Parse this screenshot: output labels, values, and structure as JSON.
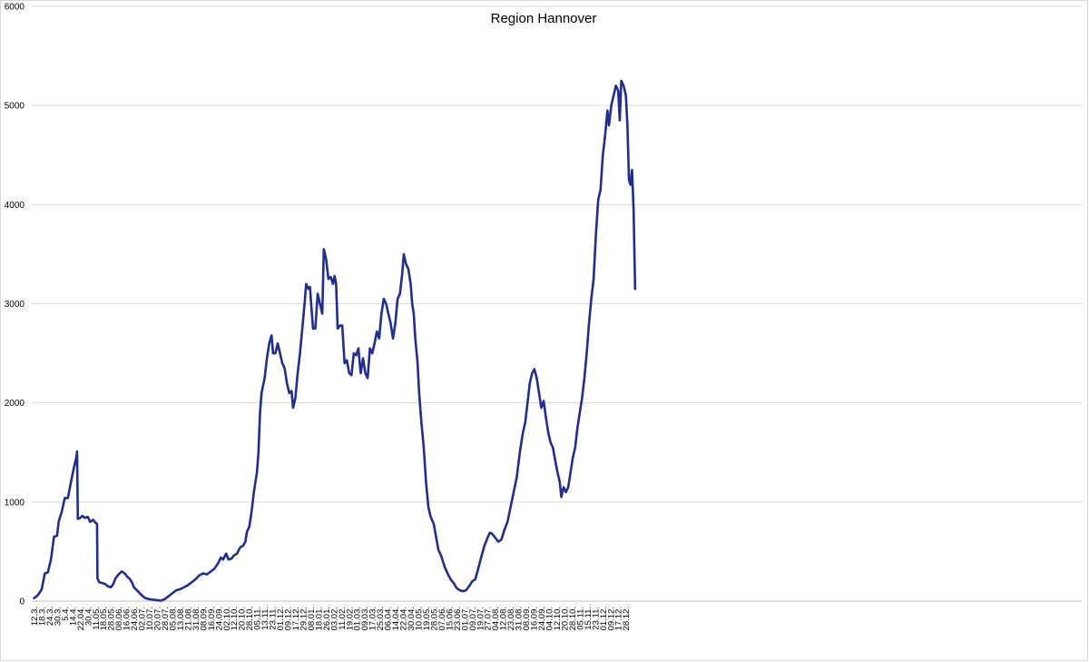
{
  "chart_data": {
    "type": "line",
    "title": "Region Hannover",
    "xlabel": "",
    "ylabel": "",
    "ylim": [
      0,
      6000
    ],
    "yticks": [
      0,
      1000,
      2000,
      3000,
      4000,
      5000,
      6000
    ],
    "grid": true,
    "legend": "none",
    "line_color": "#1f2d96",
    "x_tick_labels": [
      "12.3.",
      "18.3.",
      "24.3.",
      "30.3.",
      "5.4.",
      "14.4.",
      "22.04.",
      "30.4.",
      "11.05.",
      "18.05.",
      "28.05.",
      "08.06.",
      "16.06.",
      "24.06.",
      "02.07.",
      "10.07.",
      "20.07.",
      "28.07.",
      "05.08.",
      "13.08.",
      "21.08.",
      "31.08.",
      "08.09.",
      "16.09.",
      "24.09.",
      "02.10.",
      "12.10.",
      "20.10.",
      "28.10.",
      "05.11.",
      "13.11.",
      "23.11.",
      "01.12.",
      "09.12.",
      "17.12.",
      "29.12.",
      "08.01.",
      "18.01.",
      "26.01.",
      "03.02.",
      "11.02.",
      "19.02.",
      "01.03.",
      "09.03.",
      "17.03.",
      "25.03.",
      "06.04.",
      "14.04.",
      "22.04.",
      "30.04.",
      "10.05.",
      "19.05.",
      "28.05.",
      "07.06.",
      "15.06.",
      "23.06.",
      "01.07.",
      "09.07.",
      "19.07.",
      "27.07.",
      "04.08.",
      "12.08.",
      "23.08.",
      "31.08.",
      "08.09.",
      "16.09.",
      "24.09.",
      "04.10.",
      "12.10.",
      "20.10.",
      "28.10.",
      "05.11.",
      "15.11.",
      "23.11.",
      "01.12.",
      "09.12.",
      "17.12.",
      "28.12."
    ],
    "series": [
      {
        "values": [
          [
            0,
            30
          ],
          [
            0.5,
            60
          ],
          [
            1,
            120
          ],
          [
            1.4,
            280
          ],
          [
            1.8,
            290
          ],
          [
            2.2,
            420
          ],
          [
            2.6,
            650
          ],
          [
            3,
            660
          ],
          [
            3.2,
            800
          ],
          [
            3.6,
            900
          ],
          [
            4,
            1040
          ],
          [
            4.4,
            1040
          ],
          [
            4.8,
            1200
          ],
          [
            5.2,
            1350
          ],
          [
            5.5,
            1450
          ],
          [
            5.6,
            1510
          ],
          [
            5.7,
            830
          ],
          [
            6,
            840
          ],
          [
            6.3,
            860
          ],
          [
            6.6,
            840
          ],
          [
            7,
            850
          ],
          [
            7.3,
            800
          ],
          [
            7.7,
            820
          ],
          [
            8,
            790
          ],
          [
            8.2,
            780
          ],
          [
            8.25,
            230
          ],
          [
            8.5,
            190
          ],
          [
            9,
            180
          ],
          [
            9.3,
            170
          ],
          [
            9.6,
            150
          ],
          [
            10,
            140
          ],
          [
            10.3,
            170
          ],
          [
            10.6,
            230
          ],
          [
            11,
            270
          ],
          [
            11.4,
            300
          ],
          [
            11.8,
            280
          ],
          [
            12.1,
            250
          ],
          [
            12.5,
            220
          ],
          [
            12.8,
            180
          ],
          [
            13,
            140
          ],
          [
            13.5,
            100
          ],
          [
            14,
            60
          ],
          [
            14.5,
            30
          ],
          [
            15,
            20
          ],
          [
            15.5,
            15
          ],
          [
            16,
            10
          ],
          [
            16.5,
            5
          ],
          [
            17,
            20
          ],
          [
            17.5,
            50
          ],
          [
            18,
            80
          ],
          [
            18.5,
            110
          ],
          [
            19,
            120
          ],
          [
            19.5,
            140
          ],
          [
            20,
            160
          ],
          [
            20.5,
            190
          ],
          [
            21,
            220
          ],
          [
            21.5,
            260
          ],
          [
            22,
            280
          ],
          [
            22.5,
            270
          ],
          [
            23,
            300
          ],
          [
            23.5,
            330
          ],
          [
            24,
            390
          ],
          [
            24.3,
            440
          ],
          [
            24.6,
            420
          ],
          [
            25,
            480
          ],
          [
            25.3,
            420
          ],
          [
            25.7,
            430
          ],
          [
            26,
            460
          ],
          [
            26.4,
            480
          ],
          [
            26.8,
            540
          ],
          [
            27.2,
            560
          ],
          [
            27.5,
            600
          ],
          [
            27.7,
            700
          ],
          [
            28,
            750
          ],
          [
            28.3,
            900
          ],
          [
            28.6,
            1100
          ],
          [
            29,
            1300
          ],
          [
            29.2,
            1500
          ],
          [
            29.4,
            1900
          ],
          [
            29.6,
            2100
          ],
          [
            30,
            2250
          ],
          [
            30.3,
            2450
          ],
          [
            30.6,
            2600
          ],
          [
            30.9,
            2680
          ],
          [
            31.1,
            2500
          ],
          [
            31.4,
            2500
          ],
          [
            31.7,
            2600
          ],
          [
            32,
            2500
          ],
          [
            32.3,
            2400
          ],
          [
            32.6,
            2350
          ],
          [
            32.9,
            2200
          ],
          [
            33.2,
            2100
          ],
          [
            33.5,
            2120
          ],
          [
            33.7,
            1950
          ],
          [
            34,
            2050
          ],
          [
            34.3,
            2300
          ],
          [
            34.6,
            2500
          ],
          [
            34.9,
            2750
          ],
          [
            35.2,
            3000
          ],
          [
            35.4,
            3200
          ],
          [
            35.7,
            3150
          ],
          [
            35.9,
            3170
          ],
          [
            36.1,
            2950
          ],
          [
            36.3,
            2750
          ],
          [
            36.6,
            2750
          ],
          [
            36.9,
            3100
          ],
          [
            37.2,
            3000
          ],
          [
            37.5,
            2900
          ],
          [
            37.7,
            3550
          ],
          [
            38,
            3450
          ],
          [
            38.3,
            3250
          ],
          [
            38.6,
            3270
          ],
          [
            38.9,
            3200
          ],
          [
            39.1,
            3280
          ],
          [
            39.3,
            3200
          ],
          [
            39.5,
            2750
          ],
          [
            39.8,
            2780
          ],
          [
            40.1,
            2780
          ],
          [
            40.4,
            2400
          ],
          [
            40.7,
            2430
          ],
          [
            41,
            2300
          ],
          [
            41.3,
            2280
          ],
          [
            41.6,
            2500
          ],
          [
            41.9,
            2480
          ],
          [
            42.2,
            2550
          ],
          [
            42.5,
            2300
          ],
          [
            42.8,
            2450
          ],
          [
            43.1,
            2300
          ],
          [
            43.4,
            2250
          ],
          [
            43.7,
            2550
          ],
          [
            44,
            2500
          ],
          [
            44.3,
            2600
          ],
          [
            44.6,
            2720
          ],
          [
            44.9,
            2650
          ],
          [
            45.2,
            2900
          ],
          [
            45.5,
            3050
          ],
          [
            45.8,
            3000
          ],
          [
            46.1,
            2900
          ],
          [
            46.4,
            2800
          ],
          [
            46.7,
            2650
          ],
          [
            47,
            2800
          ],
          [
            47.3,
            3050
          ],
          [
            47.6,
            3100
          ],
          [
            47.9,
            3300
          ],
          [
            48.1,
            3500
          ],
          [
            48.4,
            3400
          ],
          [
            48.7,
            3350
          ],
          [
            49,
            3200
          ],
          [
            49.2,
            3000
          ],
          [
            49.4,
            2900
          ],
          [
            49.6,
            2650
          ],
          [
            49.9,
            2400
          ],
          [
            50.1,
            2100
          ],
          [
            50.4,
            1800
          ],
          [
            50.7,
            1550
          ],
          [
            51,
            1200
          ],
          [
            51.3,
            950
          ],
          [
            51.6,
            850
          ],
          [
            52,
            780
          ],
          [
            52.3,
            650
          ],
          [
            52.6,
            520
          ],
          [
            53,
            450
          ],
          [
            53.4,
            350
          ],
          [
            53.8,
            280
          ],
          [
            54.2,
            220
          ],
          [
            54.6,
            180
          ],
          [
            55,
            130
          ],
          [
            55.4,
            110
          ],
          [
            55.8,
            100
          ],
          [
            56.2,
            110
          ],
          [
            56.6,
            150
          ],
          [
            57,
            200
          ],
          [
            57.4,
            220
          ],
          [
            57.8,
            330
          ],
          [
            58.2,
            450
          ],
          [
            58.6,
            560
          ],
          [
            59,
            640
          ],
          [
            59.3,
            690
          ],
          [
            59.6,
            680
          ],
          [
            60,
            640
          ],
          [
            60.4,
            600
          ],
          [
            60.8,
            620
          ],
          [
            61.2,
            720
          ],
          [
            61.6,
            800
          ],
          [
            62,
            950
          ],
          [
            62.4,
            1100
          ],
          [
            62.8,
            1250
          ],
          [
            63.2,
            1500
          ],
          [
            63.6,
            1700
          ],
          [
            63.9,
            1800
          ],
          [
            64.2,
            2000
          ],
          [
            64.5,
            2200
          ],
          [
            64.8,
            2300
          ],
          [
            65.1,
            2340
          ],
          [
            65.4,
            2250
          ],
          [
            65.7,
            2100
          ],
          [
            66,
            1950
          ],
          [
            66.3,
            2020
          ],
          [
            66.6,
            1850
          ],
          [
            66.9,
            1700
          ],
          [
            67.2,
            1600
          ],
          [
            67.5,
            1550
          ],
          [
            67.8,
            1420
          ],
          [
            68.1,
            1300
          ],
          [
            68.4,
            1200
          ],
          [
            68.6,
            1050
          ],
          [
            68.9,
            1150
          ],
          [
            69.2,
            1100
          ],
          [
            69.5,
            1150
          ],
          [
            69.8,
            1300
          ],
          [
            70.1,
            1450
          ],
          [
            70.4,
            1550
          ],
          [
            70.7,
            1750
          ],
          [
            71,
            1900
          ],
          [
            71.3,
            2050
          ],
          [
            71.6,
            2250
          ],
          [
            71.9,
            2500
          ],
          [
            72.2,
            2800
          ],
          [
            72.5,
            3050
          ],
          [
            72.8,
            3250
          ],
          [
            73.1,
            3700
          ],
          [
            73.4,
            4050
          ],
          [
            73.7,
            4150
          ],
          [
            74,
            4500
          ],
          [
            74.3,
            4700
          ],
          [
            74.6,
            4950
          ],
          [
            74.8,
            4800
          ],
          [
            75.1,
            5000
          ],
          [
            75.4,
            5100
          ],
          [
            75.7,
            5200
          ],
          [
            76,
            5150
          ],
          [
            76.2,
            4850
          ],
          [
            76.4,
            5250
          ],
          [
            76.7,
            5200
          ],
          [
            77,
            5100
          ],
          [
            77.2,
            4800
          ],
          [
            77.4,
            4250
          ],
          [
            77.6,
            4200
          ],
          [
            77.8,
            4350
          ],
          [
            78,
            3950
          ],
          [
            78.2,
            3150
          ]
        ]
      }
    ]
  }
}
